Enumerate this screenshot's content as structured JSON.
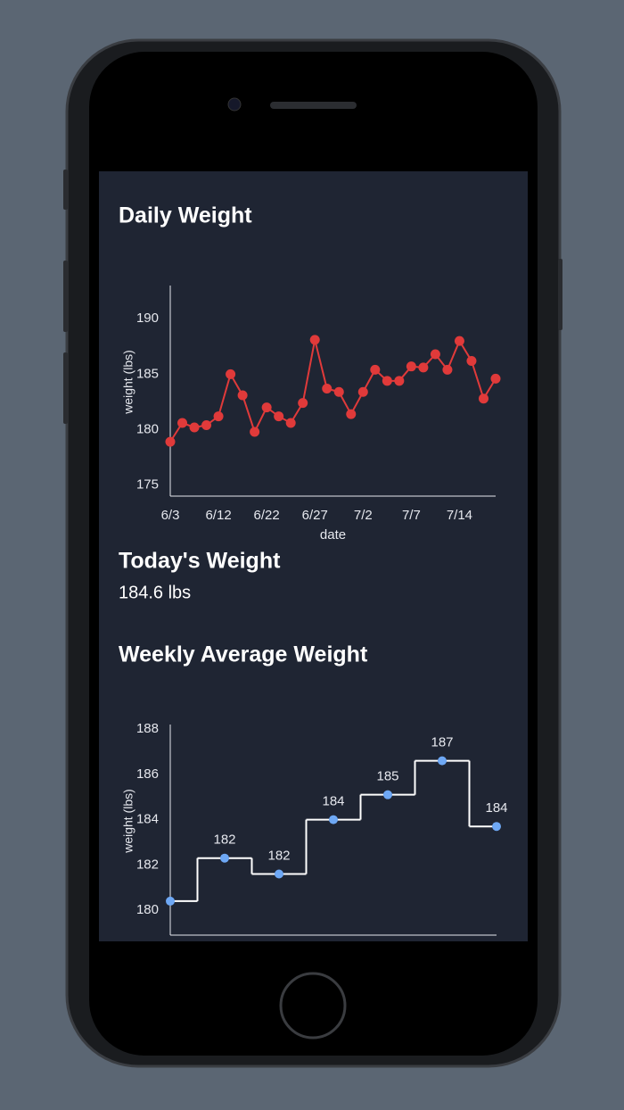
{
  "chart_data": [
    {
      "type": "line",
      "title": "Daily Weight",
      "xlabel": "date",
      "ylabel": "weight (lbs)",
      "categories": [
        "6/3",
        null,
        null,
        null,
        "6/12",
        null,
        null,
        null,
        "6/22",
        null,
        null,
        null,
        "6/27",
        null,
        null,
        null,
        "7/2",
        null,
        null,
        null,
        "7/7",
        null,
        null,
        null,
        "7/14",
        null,
        null,
        null
      ],
      "values": [
        178.9,
        180.6,
        180.2,
        180.4,
        181.2,
        185.0,
        183.1,
        179.8,
        182.0,
        181.2,
        180.6,
        182.4,
        188.1,
        183.7,
        183.4,
        181.4,
        183.4,
        185.4,
        184.4,
        184.4,
        185.7,
        185.6,
        186.8,
        185.4,
        188.0,
        186.2,
        182.8,
        184.6
      ],
      "color": "#e03a3a",
      "ylim": [
        174,
        193
      ],
      "yticks": [
        175,
        180,
        185,
        190
      ],
      "grid": false
    },
    {
      "type": "step",
      "title": "Weekly Average Weight",
      "ylabel": "weight (lbs)",
      "categories": [
        null,
        null,
        null,
        null,
        null,
        null,
        null
      ],
      "values": [
        180.4,
        182.3,
        181.6,
        184.0,
        185.1,
        186.6,
        183.7
      ],
      "value_labels": [
        null,
        "182",
        "182",
        "184",
        "185",
        "187",
        "184"
      ],
      "color": "#6ea8f5",
      "line_color": "#ffffff",
      "ylim": [
        178.9,
        188.2
      ],
      "yticks": [
        180,
        182,
        184,
        186,
        188
      ],
      "grid": false
    }
  ],
  "today": {
    "title": "Today's Weight",
    "value": "184.6 lbs"
  }
}
